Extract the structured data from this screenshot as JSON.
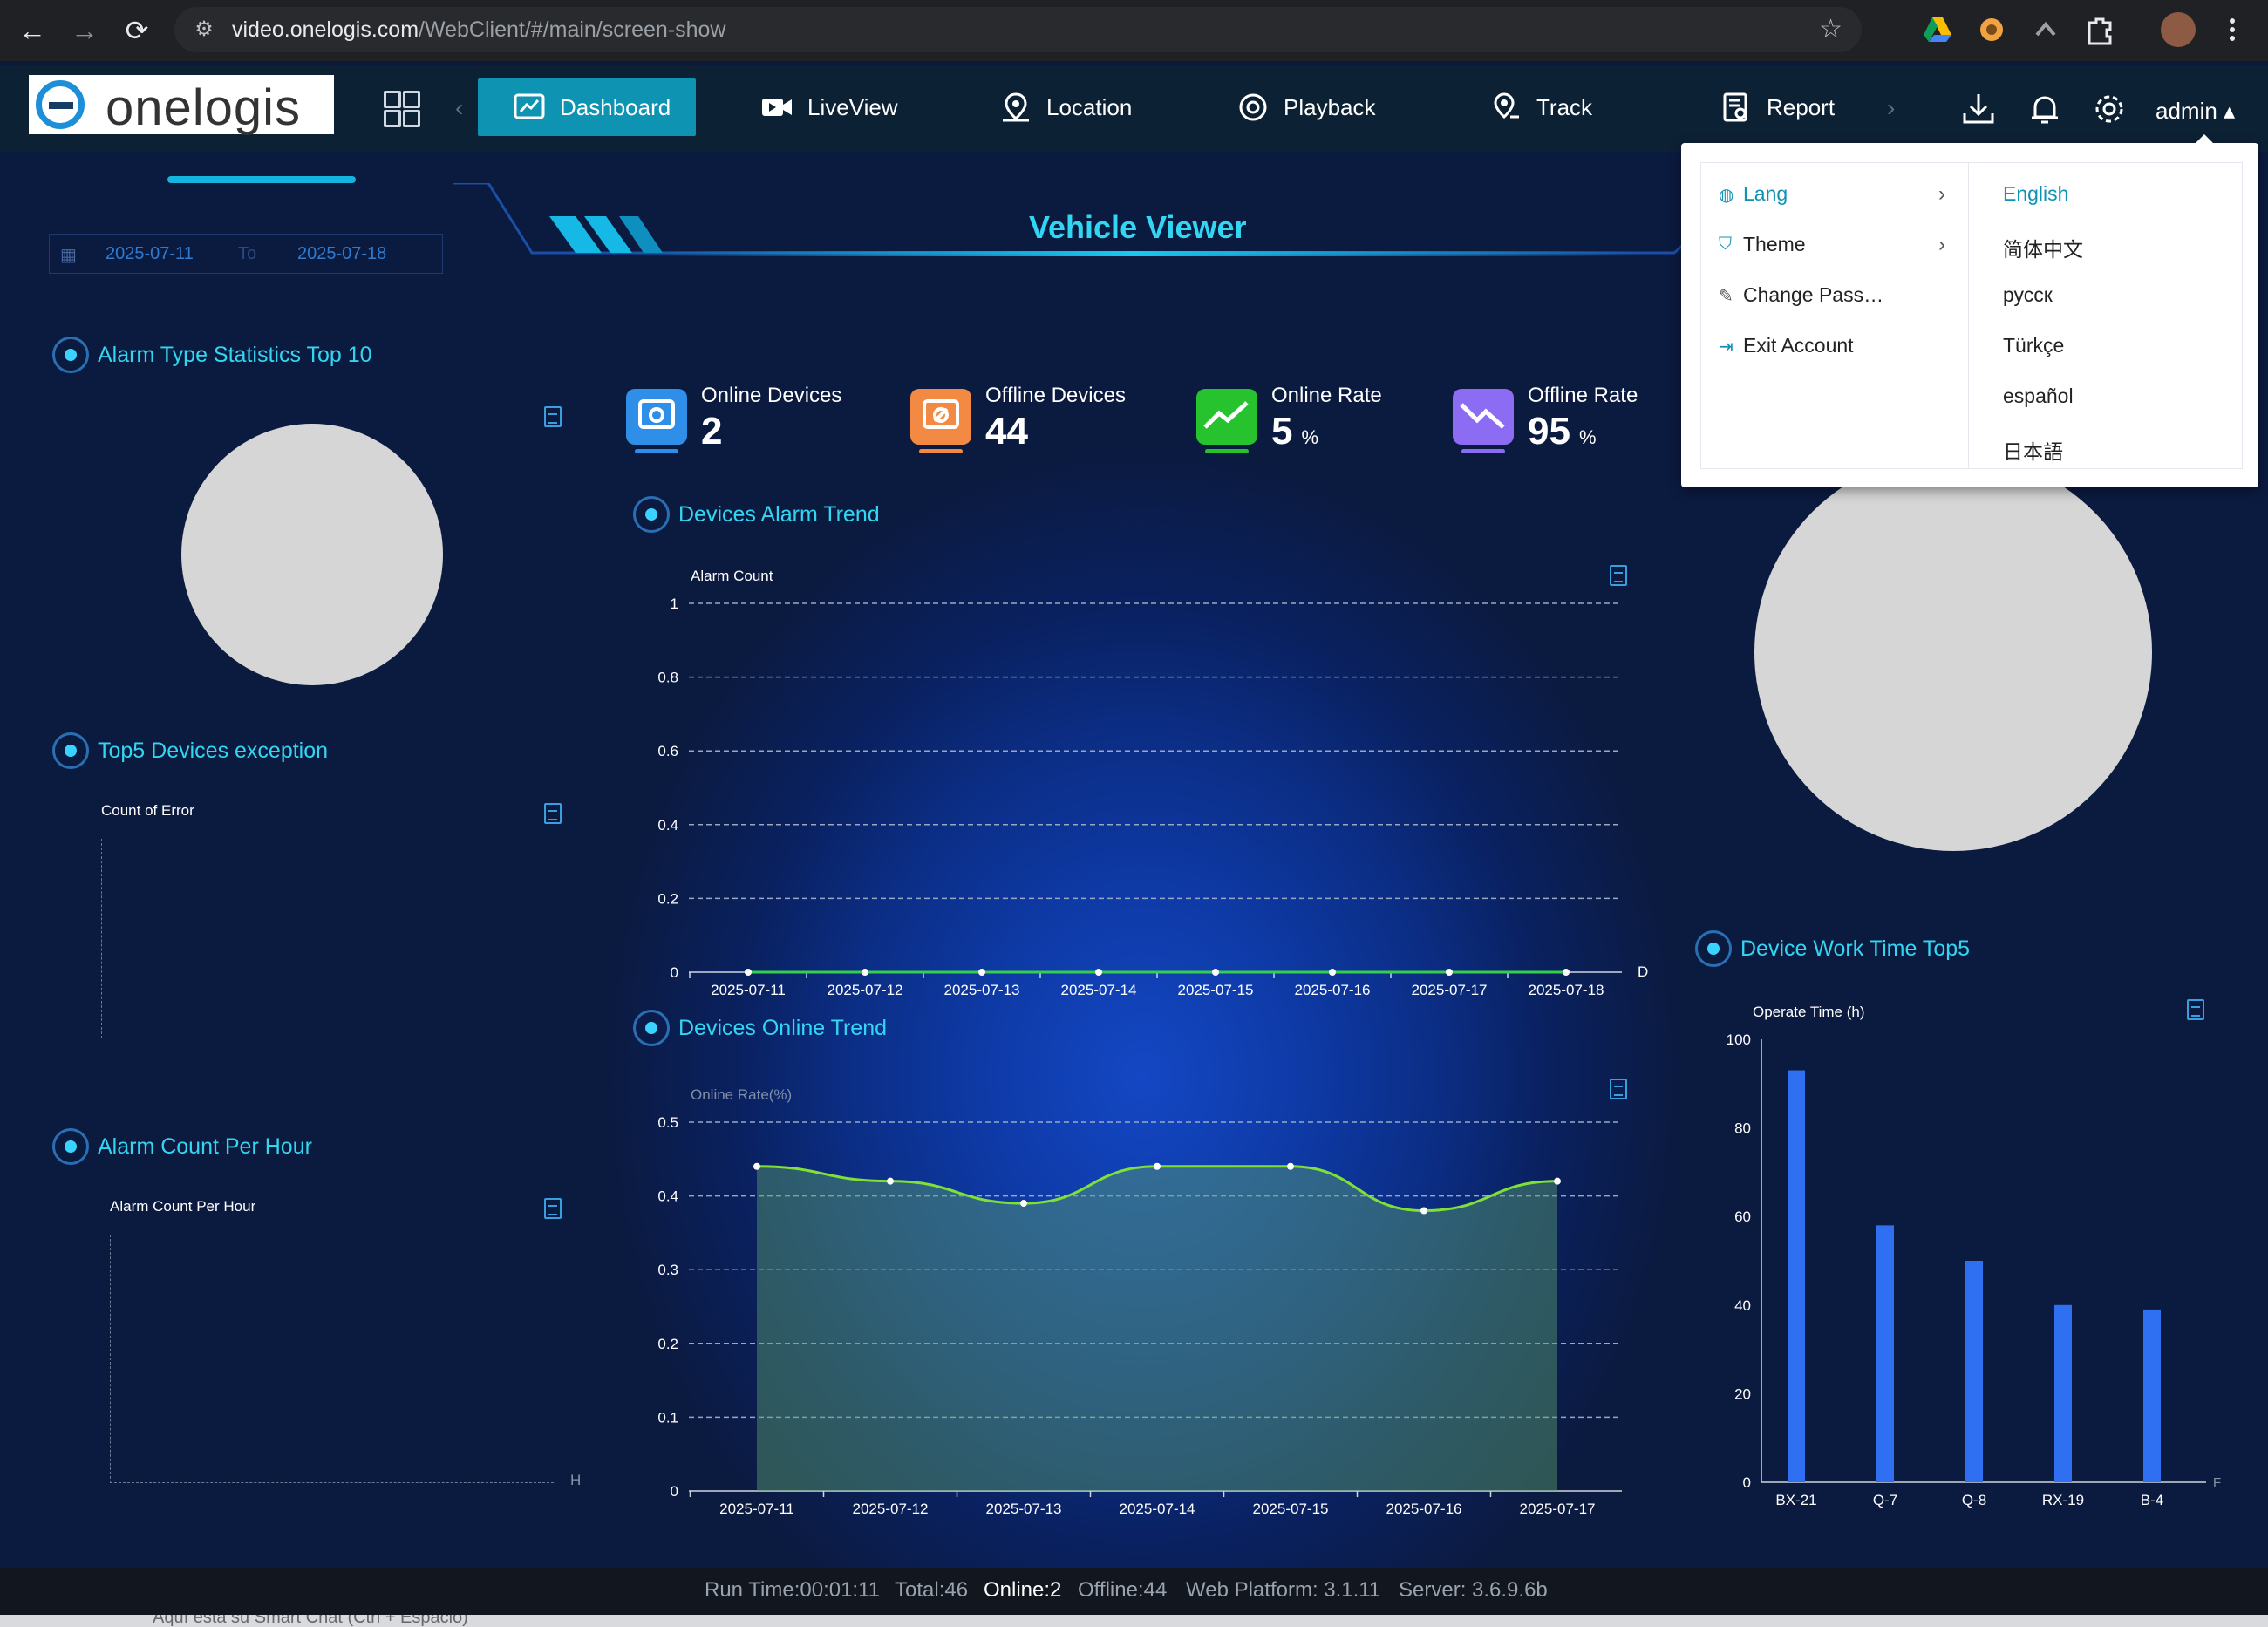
{
  "browser": {
    "url_host": "video.onelogis.com",
    "url_path": "/WebClient/#/main/screen-show",
    "back_icon": "←",
    "forward_icon": "→",
    "reload_icon": "⟳",
    "site_info_icon": "⚙",
    "bookmark_icon": "☆"
  },
  "header": {
    "logo_text": "onelogis",
    "menu": [
      {
        "label": "Dashboard",
        "icon": "dashboard-icon"
      },
      {
        "label": "LiveView",
        "icon": "video-camera-icon"
      },
      {
        "label": "Location",
        "icon": "location-pin-icon"
      },
      {
        "label": "Playback",
        "icon": "playback-icon"
      },
      {
        "label": "Track",
        "icon": "track-pin-icon"
      },
      {
        "label": "Report",
        "icon": "report-icon"
      }
    ],
    "user": "admin",
    "user_caret": "▴",
    "nav_left": "‹",
    "nav_right": "›"
  },
  "dashboard": {
    "title": "Vehicle Viewer",
    "date_from": "2025-07-11",
    "date_to_label": "To",
    "date_to": "2025-07-18",
    "calendar_icon": "▦"
  },
  "kpis": [
    {
      "label": "Online Devices",
      "value": "2",
      "unit": "",
      "color": "#2f8fe8",
      "icon": "camera-icon"
    },
    {
      "label": "Offline Devices",
      "value": "44",
      "unit": "",
      "color": "#f28a43",
      "icon": "camera-offline-icon"
    },
    {
      "label": "Online Rate",
      "value": "5",
      "unit": "%",
      "color": "#26c32f",
      "icon": "trend-up-icon"
    },
    {
      "label": "Offline Rate",
      "value": "95",
      "unit": "%",
      "color": "#8b6cf2",
      "icon": "trend-down-icon"
    }
  ],
  "sections": {
    "alarm_type": {
      "title": "Alarm Type Statistics Top 10"
    },
    "top5": {
      "title": "Top5 Devices exception",
      "ylabel": "Count of Error"
    },
    "alarm_hour": {
      "title": "Alarm Count Per Hour",
      "ylabel": "Alarm Count Per Hour",
      "axis_end": "H"
    },
    "alarm_trend": {
      "title": "Devices Alarm Trend"
    },
    "online_trend": {
      "title": "Devices Online Trend"
    },
    "work_time": {
      "title": "Device Work Time Top5"
    }
  },
  "chart_data": [
    {
      "type": "line",
      "title": "Devices Alarm Trend",
      "ylabel": "Alarm Count",
      "x": [
        "2025-07-11",
        "2025-07-12",
        "2025-07-13",
        "2025-07-14",
        "2025-07-15",
        "2025-07-16",
        "2025-07-17",
        "2025-07-18"
      ],
      "values": [
        0,
        0,
        0,
        0,
        0,
        0,
        0,
        0
      ],
      "ylim": [
        0,
        1
      ],
      "yticks": [
        0,
        0.2,
        0.4,
        0.6,
        0.8,
        1
      ],
      "ytick_labels": [
        "0",
        "0.2",
        "0.4",
        "0.6",
        "0.8",
        "1"
      ],
      "x_end_label": "D",
      "color": "#35d04a",
      "grid": true
    },
    {
      "type": "area",
      "title": "Devices Online Trend",
      "ylabel": "Online Rate(%)",
      "x": [
        "2025-07-11",
        "2025-07-12",
        "2025-07-13",
        "2025-07-14",
        "2025-07-15",
        "2025-07-16",
        "2025-07-17"
      ],
      "values": [
        0.44,
        0.42,
        0.39,
        0.44,
        0.44,
        0.38,
        0.42
      ],
      "ylim": [
        0,
        0.5
      ],
      "yticks": [
        0,
        0.1,
        0.2,
        0.3,
        0.4,
        0.5
      ],
      "ytick_labels": [
        "0",
        "0.1",
        "0.2",
        "0.3",
        "0.4",
        "0.5"
      ],
      "color": "#7fe035",
      "grid": true
    },
    {
      "type": "bar",
      "title": "Device Work Time Top5",
      "ylabel": "Operate Time (h)",
      "categories": [
        "BX-21",
        "Q-7",
        "Q-8",
        "RX-19",
        "B-4"
      ],
      "values": [
        93,
        58,
        50,
        40,
        39
      ],
      "ylim": [
        0,
        100
      ],
      "yticks": [
        0,
        20,
        40,
        60,
        80,
        100
      ],
      "ytick_labels": [
        "0",
        "20",
        "40",
        "60",
        "80",
        "100"
      ],
      "x_end_label": "F",
      "color": "#2f6ff2",
      "grid": false
    }
  ],
  "dropdown": {
    "menu": [
      {
        "label": "Lang",
        "icon": "globe-icon",
        "has_submenu": true,
        "active": true
      },
      {
        "label": "Theme",
        "icon": "shirt-icon",
        "has_submenu": true,
        "active": false
      },
      {
        "label": "Change Pass…",
        "icon": "edit-icon",
        "has_submenu": false,
        "active": false
      },
      {
        "label": "Exit Account",
        "icon": "exit-icon",
        "has_submenu": false,
        "active": false
      }
    ],
    "chevron": "›",
    "languages": [
      {
        "label": "English",
        "active": true
      },
      {
        "label": "简体中文",
        "active": false
      },
      {
        "label": "русск",
        "active": false
      },
      {
        "label": "Türkçe",
        "active": false
      },
      {
        "label": "español",
        "active": false
      },
      {
        "label": "日本語",
        "active": false
      }
    ]
  },
  "statusbar": {
    "run_time": "Run Time:00:01:11",
    "total": "Total:46",
    "online": "Online:2",
    "offline": "Offline:44",
    "web_platform": "Web Platform: 3.1.11",
    "server": "Server: 3.6.9.6b"
  },
  "hint": "Aquí está su Smart Chat (Ctrl + Espacio)"
}
